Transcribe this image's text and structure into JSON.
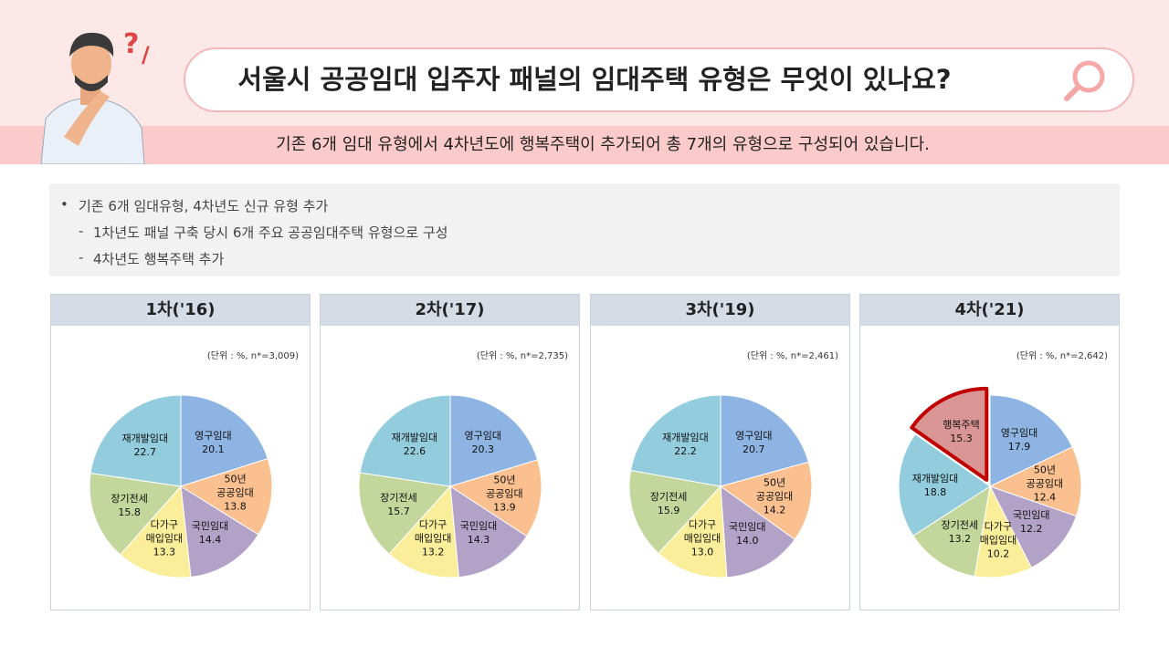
{
  "header": {
    "title": "서울시 공공임대 입주자 패널의 임대주택 유형은 무엇이 있나요?",
    "subtitle": "기존 6개 임대 유형에서 4차년도에 행복주택이 추가되어 총 7개의 유형으로 구성되어 있습니다."
  },
  "notes": {
    "bullet": "기존 6개 임대유형, 4차년도 신규 유형 추가",
    "items": [
      "1차년도 패널 구축 당시 6개 주요 공공임대주택 유형으로 구성",
      "4차년도 행복주택 추가"
    ]
  },
  "chart_data": [
    {
      "type": "pie",
      "title": "1차('16)",
      "subtitle": "(단위 : %,  n*=3,009)",
      "categories": [
        "영구임대",
        "50년\n공공임대",
        "국민임대",
        "다가구\n매입임대",
        "장기전세",
        "재개발임대"
      ],
      "values": [
        20.1,
        13.8,
        14.4,
        13.3,
        15.8,
        22.7
      ],
      "colors": [
        "#8eb4e3",
        "#fac090",
        "#b3a2c7",
        "#fbee9a",
        "#c3d69b",
        "#93cddd"
      ]
    },
    {
      "type": "pie",
      "title": "2차('17)",
      "subtitle": "(단위 : %,  n*=2,735)",
      "categories": [
        "영구임대",
        "50년\n공공임대",
        "국민임대",
        "다가구\n매입임대",
        "장기전세",
        "재개발임대"
      ],
      "values": [
        20.3,
        13.9,
        14.3,
        13.2,
        15.7,
        22.6
      ],
      "colors": [
        "#8eb4e3",
        "#fac090",
        "#b3a2c7",
        "#fbee9a",
        "#c3d69b",
        "#93cddd"
      ]
    },
    {
      "type": "pie",
      "title": "3차('19)",
      "subtitle": "(단위 : %,  n*=2,461)",
      "categories": [
        "영구임대",
        "50년\n공공임대",
        "국민임대",
        "다가구\n매입임대",
        "장기전세",
        "재개발임대"
      ],
      "values": [
        20.7,
        14.2,
        14,
        13,
        15.9,
        22.2
      ],
      "value_labels": [
        "20.7",
        "14.2",
        "14.0",
        "13.0",
        "15.9",
        "22.2"
      ],
      "colors": [
        "#8eb4e3",
        "#fac090",
        "#b3a2c7",
        "#fbee9a",
        "#c3d69b",
        "#93cddd"
      ]
    },
    {
      "type": "pie",
      "title": "4차('21)",
      "subtitle": "(단위 : %,  n*=2,642)",
      "categories": [
        "영구임대",
        "50년\n공공임대",
        "국민임대",
        "다가구\n매입임대",
        "장기전세",
        "재개발임대",
        "행복주택"
      ],
      "values": [
        17.9,
        12.4,
        12.2,
        10.2,
        13.2,
        18.8,
        15.3
      ],
      "colors": [
        "#8eb4e3",
        "#fac090",
        "#b3a2c7",
        "#fbee9a",
        "#c3d69b",
        "#93cddd",
        "#d99694"
      ],
      "highlight": {
        "index": 6,
        "color": "#c00000"
      }
    }
  ]
}
